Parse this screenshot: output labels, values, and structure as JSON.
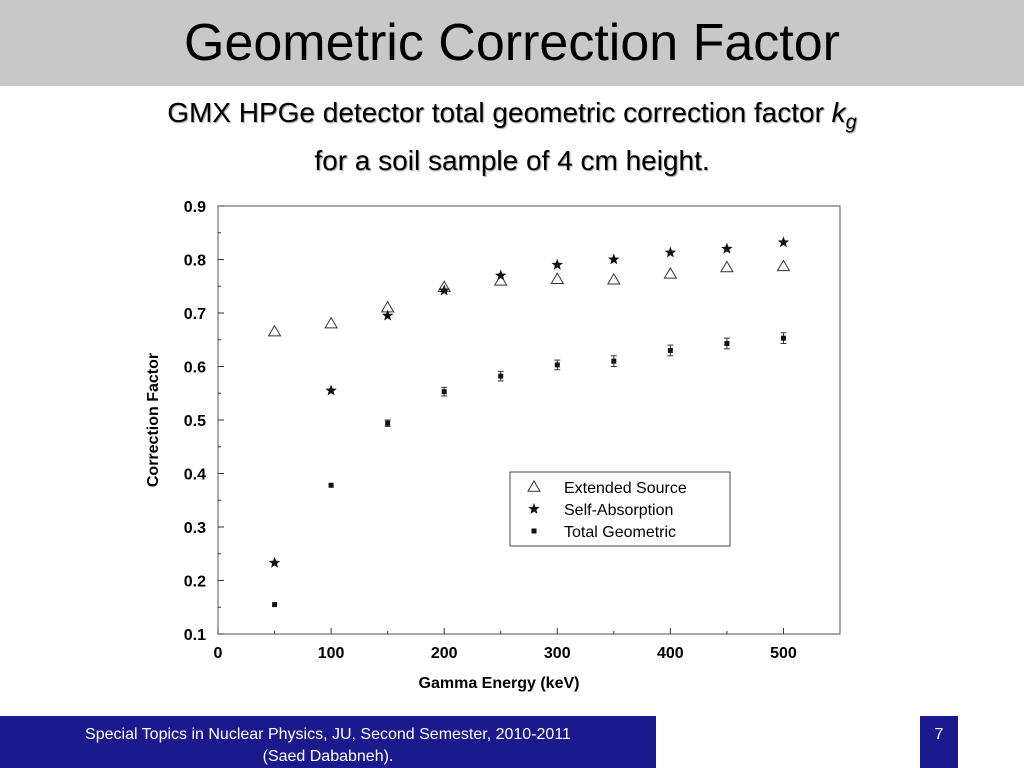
{
  "slide": {
    "title": "Geometric Correction Factor",
    "subtitle_line1_prefix": "GMX HPGe detector total geometric correction factor ",
    "subtitle_k": "k",
    "subtitle_sub": "g",
    "subtitle_line2": "for a soil sample of 4 cm height."
  },
  "footer": {
    "line1": "Special Topics in Nuclear Physics, JU, Second Semester, 2010-2011",
    "line2": "(Saed Dababneh).",
    "page_number": "7"
  },
  "colors": {
    "title_bar": "#c8c8c8",
    "footer": "#1a1a8c"
  },
  "chart_data": {
    "type": "scatter",
    "title": "",
    "xlabel": "Gamma Energy (keV)",
    "ylabel": "Correction Factor",
    "xlim": [
      0,
      550
    ],
    "ylim": [
      0.1,
      0.9
    ],
    "xticks": [
      0,
      100,
      200,
      300,
      400,
      500
    ],
    "xtick_labels": [
      "0",
      "100",
      "200",
      "300",
      "400",
      "500"
    ],
    "yticks": [
      0.1,
      0.2,
      0.3,
      0.4,
      0.5,
      0.6,
      0.7,
      0.8,
      0.9
    ],
    "ytick_labels": [
      "0.1",
      "0.2",
      "0.3",
      "0.4",
      "0.5",
      "0.6",
      "0.7",
      "0.8",
      "0.9"
    ],
    "grid": false,
    "legend_position": "lower-right",
    "series": [
      {
        "name": "Extended Source",
        "marker": "triangle-open",
        "x": [
          50,
          100,
          150,
          200,
          250,
          300,
          350,
          400,
          450,
          500
        ],
        "y": [
          0.665,
          0.68,
          0.71,
          0.748,
          0.76,
          0.763,
          0.762,
          0.773,
          0.785,
          0.787
        ]
      },
      {
        "name": "Self-Absorption",
        "marker": "star",
        "x": [
          50,
          100,
          150,
          200,
          250,
          300,
          350,
          400,
          450,
          500
        ],
        "y": [
          0.233,
          0.555,
          0.695,
          0.742,
          0.77,
          0.79,
          0.8,
          0.813,
          0.82,
          0.832
        ]
      },
      {
        "name": "Total Geometric",
        "marker": "square",
        "x": [
          50,
          100,
          150,
          200,
          250,
          300,
          350,
          400,
          450,
          500
        ],
        "y": [
          0.155,
          0.378,
          0.494,
          0.553,
          0.582,
          0.603,
          0.61,
          0.63,
          0.643,
          0.653
        ],
        "err": [
          0,
          0,
          0.006,
          0.008,
          0.009,
          0.009,
          0.01,
          0.01,
          0.01,
          0.01
        ]
      }
    ]
  }
}
